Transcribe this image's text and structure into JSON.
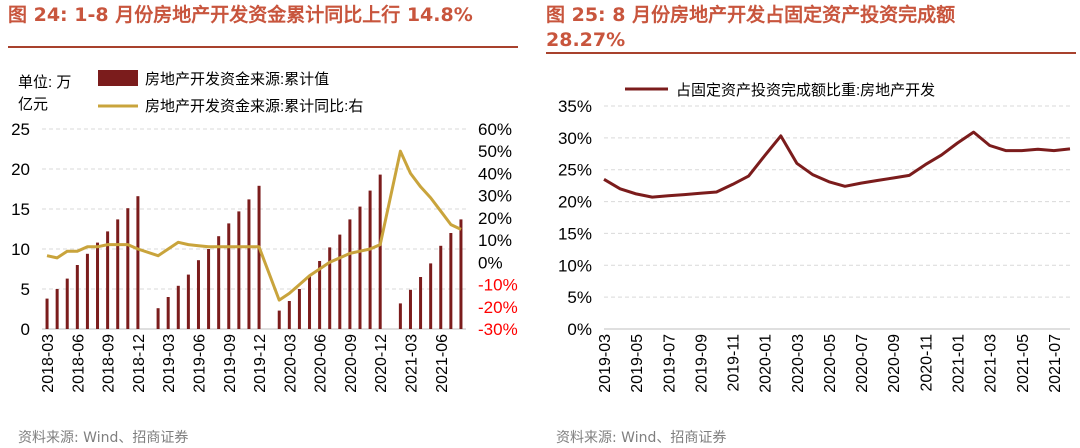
{
  "left": {
    "title": "图 24:  1-8 月份房地产开发资金累计同比上行 14.8%",
    "unit_line1": "单位:  万",
    "unit_line2": "亿元",
    "source": "资料来源:  Wind、招商证券",
    "colors": {
      "bar": "#7b1c1c",
      "line": "#c9a43c",
      "negative": "#ff0000",
      "title": "#c8553d"
    }
  },
  "right": {
    "title_line1": "图 25:  8 月份房地产开发占固定资产投资完成额",
    "title_line2": "28.27%",
    "source": "资料来源:  Wind、招商证券",
    "colors": {
      "line": "#7b1c1c"
    }
  },
  "chart_data": [
    {
      "type": "bar",
      "title": "1-8 月份房地产开发资金累计同比上行 14.8%",
      "series": [
        {
          "name": "房地产开发资金来源:累计值",
          "axis": "left",
          "kind": "bar",
          "values": [
            3.8,
            5.0,
            6.3,
            8.0,
            9.4,
            10.8,
            12.2,
            13.7,
            15.1,
            16.6,
            2.6,
            4.0,
            5.4,
            6.8,
            8.6,
            10.0,
            11.6,
            13.2,
            14.7,
            16.2,
            17.9,
            2.3,
            3.5,
            5.0,
            6.6,
            8.5,
            10.2,
            11.8,
            13.7,
            15.3,
            17.3,
            19.3,
            3.2,
            4.9,
            6.5,
            8.2,
            10.4,
            12.0,
            13.7
          ]
        },
        {
          "name": "房地产开发资金来源:累计同比:右",
          "axis": "right",
          "kind": "line",
          "values": [
            3,
            2,
            5,
            5,
            7,
            7,
            8,
            8,
            8,
            6,
            3,
            6,
            9,
            8,
            7.5,
            7,
            7,
            7,
            7,
            7,
            7,
            -17,
            -14,
            -10,
            -6,
            -3,
            0,
            2,
            4,
            5,
            6,
            8,
            50,
            40,
            34,
            29,
            23,
            17,
            14.8
          ]
        }
      ],
      "categories": [
        "2018-03",
        "2018-04",
        "2018-05",
        "2018-06",
        "2018-07",
        "2018-08",
        "2018-09",
        "2018-10",
        "2018-11",
        "2018-12",
        "2019-02",
        "2019-03",
        "2019-04",
        "2019-05",
        "2019-06",
        "2019-07",
        "2019-08",
        "2019-09",
        "2019-10",
        "2019-11",
        "2019-12",
        "2020-02",
        "2020-03",
        "2020-04",
        "2020-05",
        "2020-06",
        "2020-07",
        "2020-08",
        "2020-09",
        "2020-10",
        "2020-11",
        "2020-12",
        "2021-02",
        "2021-03",
        "2021-04",
        "2021-05",
        "2021-06",
        "2021-07",
        "2021-08"
      ],
      "month_index": [
        0,
        1,
        2,
        3,
        4,
        5,
        6,
        7,
        8,
        9,
        11,
        12,
        13,
        14,
        15,
        16,
        17,
        18,
        19,
        20,
        21,
        23,
        24,
        25,
        26,
        27,
        28,
        29,
        30,
        31,
        32,
        33,
        35,
        36,
        37,
        38,
        39,
        40,
        41
      ],
      "x_ticks": [
        "2018-03",
        "2018-06",
        "2018-09",
        "2018-12",
        "2019-03",
        "2019-06",
        "2019-09",
        "2019-12",
        "2020-03",
        "2020-06",
        "2020-09",
        "2020-12",
        "2021-03",
        "2021-06"
      ],
      "x_tick_index": [
        0,
        3,
        6,
        9,
        12,
        15,
        18,
        21,
        24,
        27,
        30,
        33,
        36,
        39
      ],
      "y_left": {
        "ticks": [
          "0",
          "5",
          "10",
          "15",
          "20",
          "25"
        ],
        "ylim": [
          0,
          25
        ]
      },
      "y_right": {
        "ticks": [
          "-30%",
          "-20%",
          "-10%",
          "0%",
          "10%",
          "20%",
          "30%",
          "40%",
          "50%",
          "60%"
        ],
        "ylim": [
          -30,
          60
        ]
      },
      "legend": [
        "房地产开发资金来源:累计值",
        "房地产开发资金来源:累计同比:右"
      ],
      "grid": true
    },
    {
      "type": "line",
      "title": "8 月份房地产开发占固定资产投资完成额 28.27%",
      "series": [
        {
          "name": "占固定资产投资完成额比重:房地产开发",
          "values": [
            23.5,
            22.0,
            21.2,
            20.7,
            20.9,
            21.1,
            21.3,
            21.5,
            22.7,
            24.0,
            27.2,
            30.3,
            26.0,
            24.2,
            23.1,
            22.4,
            22.9,
            23.3,
            23.7,
            24.1,
            25.8,
            27.3,
            29.2,
            30.9,
            28.8,
            28.0,
            28.0,
            28.2,
            28.0,
            28.27
          ]
        }
      ],
      "categories": [
        "2019-03",
        "2019-04",
        "2019-05",
        "2019-06",
        "2019-07",
        "2019-08",
        "2019-09",
        "2019-10",
        "2019-11",
        "2019-12",
        "2020-01",
        "2020-02",
        "2020-03",
        "2020-04",
        "2020-05",
        "2020-06",
        "2020-07",
        "2020-08",
        "2020-09",
        "2020-10",
        "2020-11",
        "2020-12",
        "2021-01",
        "2021-02",
        "2021-03",
        "2021-04",
        "2021-05",
        "2021-06",
        "2021-07",
        "2021-08"
      ],
      "x_ticks": [
        "2019-03",
        "2019-05",
        "2019-07",
        "2019-09",
        "2019-11",
        "2020-01",
        "2020-03",
        "2020-05",
        "2020-07",
        "2020-09",
        "2020-11",
        "2021-01",
        "2021-03",
        "2021-05",
        "2021-07"
      ],
      "y": {
        "ticks": [
          "0%",
          "5%",
          "10%",
          "15%",
          "20%",
          "25%",
          "30%",
          "35%"
        ],
        "ylim": [
          0,
          35
        ]
      },
      "legend": [
        "占固定资产投资完成额比重:房地产开发"
      ],
      "grid": true
    }
  ]
}
